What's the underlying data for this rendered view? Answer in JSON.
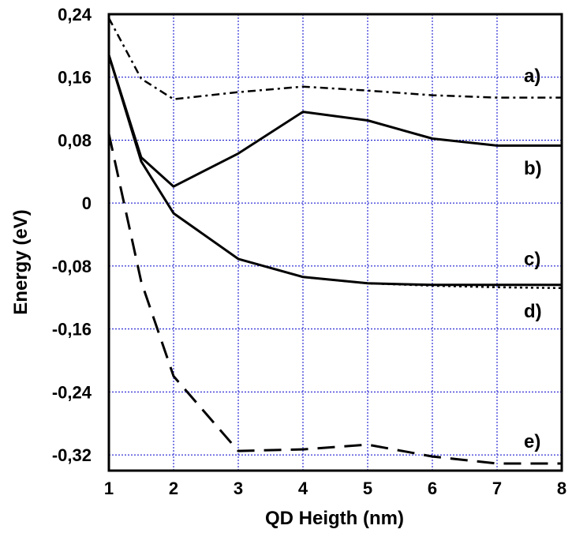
{
  "chart_data": {
    "type": "line",
    "xlabel": "QD Heigth (nm)",
    "ylabel": "Energy (eV)",
    "xlim": [
      1,
      8
    ],
    "ylim": [
      -0.34,
      0.24
    ],
    "x_ticks": [
      1,
      2,
      3,
      4,
      5,
      6,
      7,
      8
    ],
    "x_tick_labels": [
      "1",
      "2",
      "3",
      "4",
      "5",
      "6",
      "7",
      "8"
    ],
    "y_ticks": [
      0.24,
      0.16,
      0.08,
      0,
      -0.08,
      -0.16,
      -0.24,
      -0.32
    ],
    "y_tick_labels": [
      "0,24",
      "0,16",
      "0,08",
      "0",
      "-0,08",
      "-0,16",
      "-0,24",
      "-0,32"
    ],
    "grid": true,
    "grid_color": "#0000cc",
    "line_color": "#000000",
    "series": [
      {
        "name": "a)",
        "style": "dash-dot",
        "x": [
          1,
          1.5,
          2,
          3,
          4,
          5,
          6,
          7,
          8
        ],
        "y": [
          0.235,
          0.158,
          0.132,
          0.141,
          0.148,
          0.143,
          0.137,
          0.134,
          0.134
        ]
      },
      {
        "name": "b)",
        "style": "solid",
        "x": [
          1,
          1.5,
          2,
          3,
          4,
          5,
          6,
          7,
          8
        ],
        "y": [
          0.188,
          0.058,
          0.021,
          0.063,
          0.116,
          0.105,
          0.082,
          0.073,
          0.073
        ]
      },
      {
        "name": "c)",
        "style": "solid",
        "x": [
          1,
          1.5,
          2,
          3,
          4,
          5,
          6,
          7,
          8
        ],
        "y": [
          0.188,
          0.053,
          -0.013,
          -0.071,
          -0.094,
          -0.102,
          -0.104,
          -0.104,
          -0.104
        ]
      },
      {
        "name": "d)",
        "style": "dotted",
        "x": [
          1,
          1.5,
          2,
          3,
          4,
          5,
          6,
          7,
          8
        ],
        "y": [
          0.188,
          0.053,
          -0.013,
          -0.071,
          -0.094,
          -0.102,
          -0.105,
          -0.107,
          -0.108
        ]
      },
      {
        "name": "e)",
        "style": "dashed",
        "x": [
          1,
          1.5,
          2,
          3,
          4,
          5,
          6,
          7,
          8
        ],
        "y": [
          0.088,
          -0.1,
          -0.22,
          -0.315,
          -0.313,
          -0.307,
          -0.322,
          -0.331,
          -0.331
        ]
      }
    ]
  }
}
